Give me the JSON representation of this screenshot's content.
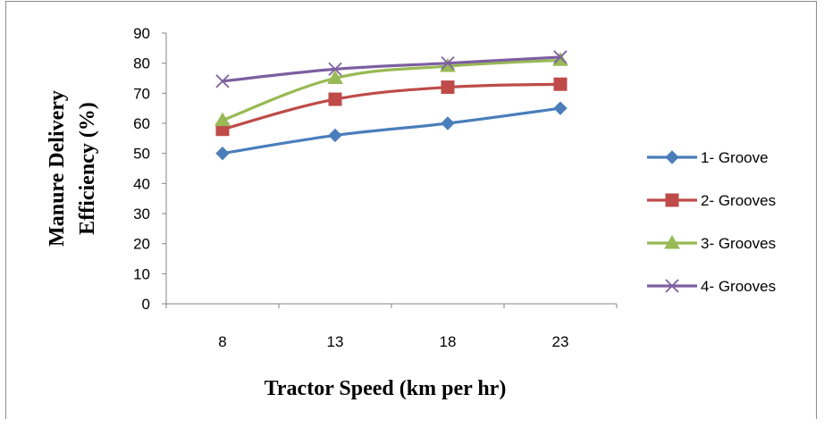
{
  "chart_data": {
    "type": "line",
    "categories": [
      "8",
      "13",
      "18",
      "23"
    ],
    "series": [
      {
        "name": "1- Groove",
        "values": [
          50,
          56,
          60,
          65
        ],
        "color": "#4a7ebb",
        "marker": "diamond"
      },
      {
        "name": "2- Grooves",
        "values": [
          58,
          68,
          72,
          73
        ],
        "color": "#be4b48",
        "marker": "square"
      },
      {
        "name": "3- Grooves",
        "values": [
          61,
          75,
          79,
          81
        ],
        "color": "#98b954",
        "marker": "triangle"
      },
      {
        "name": "4- Grooves",
        "values": [
          74,
          78,
          80,
          82
        ],
        "color": "#7d5fa0",
        "marker": "x"
      }
    ],
    "xlabel": "Tractor Speed (km per hr)",
    "ylabel_lines": [
      "Manure Delivery",
      "Efficiency (%)"
    ],
    "ylim": [
      0,
      90
    ],
    "yticks": [
      0,
      10,
      20,
      30,
      40,
      50,
      60,
      70,
      80,
      90
    ],
    "grid": false,
    "legend_position": "right"
  }
}
